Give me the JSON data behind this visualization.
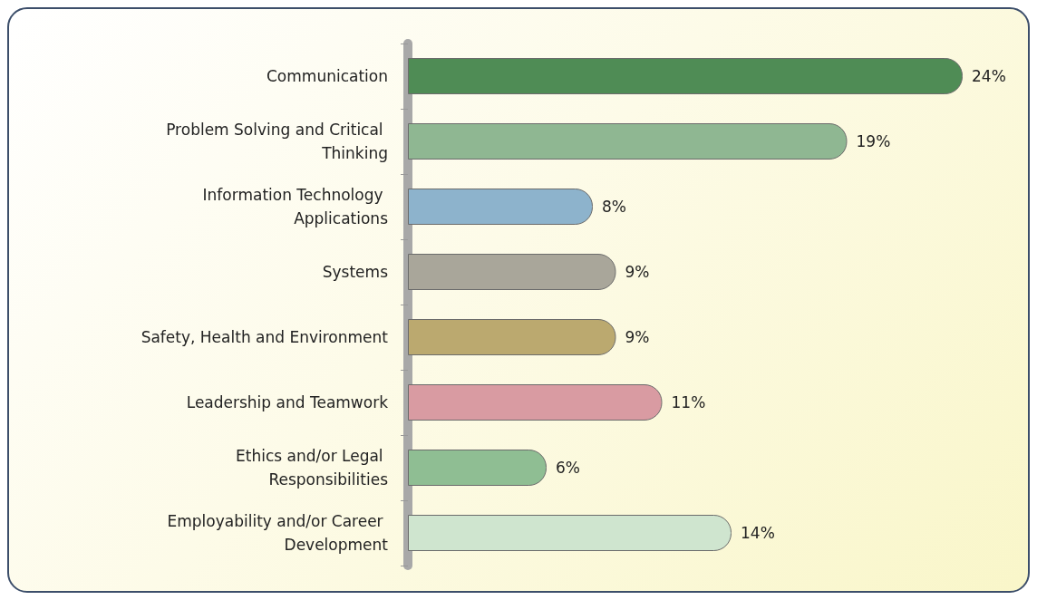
{
  "chart_data": {
    "type": "bar",
    "orientation": "horizontal",
    "categories": [
      "Communication",
      "Problem Solving and Critical Thinking",
      "Information Technology Applications",
      "Systems",
      "Safety, Health and Environment",
      "Leadership and Teamwork",
      "Ethics and/or Legal Responsibilities",
      "Employability and/or Career Development"
    ],
    "values": [
      24,
      19,
      8,
      9,
      9,
      11,
      6,
      14
    ],
    "value_labels": [
      "24%",
      "19%",
      "8%",
      "9%",
      "9%",
      "11%",
      "6%",
      "14%"
    ],
    "colors": [
      "#4f8c55",
      "#8fb792",
      "#8db3cc",
      "#a9a69a",
      "#bba96f",
      "#d99ba2",
      "#8fbe93",
      "#cfe5cf"
    ]
  }
}
